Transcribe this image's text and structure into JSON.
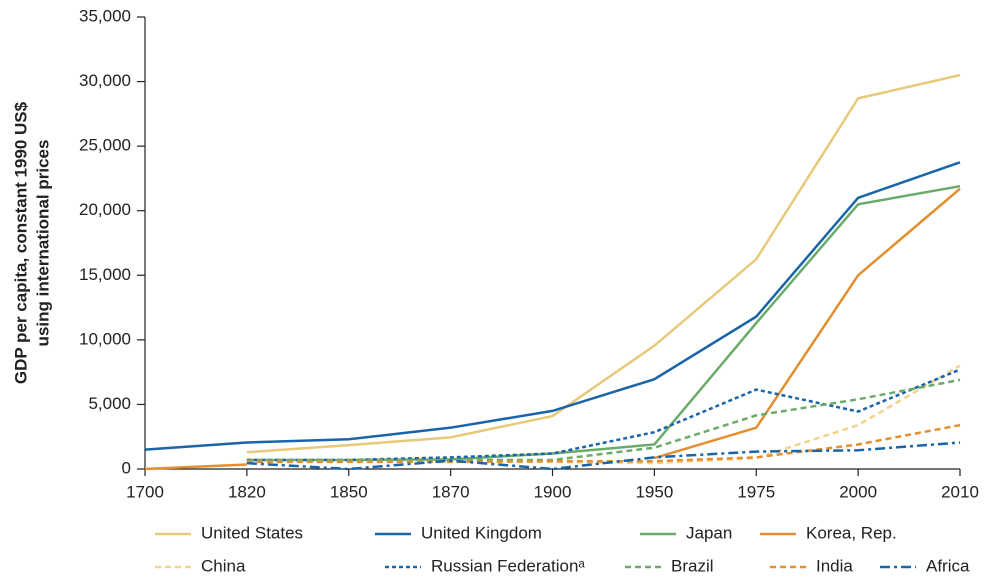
{
  "chart_data": {
    "type": "line",
    "ylabel": [
      "GDP per capita, constant 1990 US$",
      "using international prices"
    ],
    "categories": [
      "1700",
      "1820",
      "1850",
      "1870",
      "1900",
      "1950",
      "1975",
      "2000",
      "2010"
    ],
    "ylim": [
      0,
      35000
    ],
    "yticks": [
      0,
      {
        "value": 5000,
        "label": "5,000"
      },
      {
        "value": 10000,
        "label": "10,000"
      },
      {
        "value": 15000,
        "label": "15,000"
      },
      {
        "value": 20000,
        "label": "20,000"
      },
      {
        "value": 25000,
        "label": "25,000"
      },
      {
        "value": 30000,
        "label": "30,000"
      },
      {
        "value": 35000,
        "label": "35,000"
      }
    ],
    "series": [
      {
        "name": "United States",
        "color": "#e8c97a",
        "dash": "solid",
        "values": [
          null,
          1300,
          1850,
          2450,
          4100,
          9550,
          16250,
          28700,
          30500
        ]
      },
      {
        "name": "United Kingdom",
        "color": "#1a64a8",
        "dash": "solid",
        "values": [
          1500,
          2050,
          2300,
          3200,
          4500,
          6950,
          11800,
          21000,
          23750
        ]
      },
      {
        "name": "Japan",
        "color": "#6aab6a",
        "dash": "solid",
        "values": [
          null,
          700,
          700,
          750,
          1200,
          1900,
          11300,
          20500,
          21900
        ]
      },
      {
        "name": "Korea, Rep.",
        "color": "#e38f2f",
        "dash": "solid",
        "values": [
          0,
          350,
          null,
          null,
          null,
          850,
          3200,
          15000,
          21700
        ]
      },
      {
        "name": "China",
        "color": "#f2d38a",
        "dash": "dashed",
        "values": [
          null,
          600,
          600,
          550,
          550,
          450,
          850,
          3400,
          8000
        ]
      },
      {
        "name": "Russian Federationᵃ",
        "color": "#1a64a8",
        "dash": "dotted",
        "values": [
          null,
          700,
          700,
          900,
          1200,
          2850,
          6150,
          4450,
          7700
        ]
      },
      {
        "name": "Brazil",
        "color": "#6aab6a",
        "dash": "dashed",
        "values": [
          null,
          650,
          700,
          700,
          700,
          1650,
          4150,
          5400,
          6900
        ]
      },
      {
        "name": "India",
        "color": "#e38f2f",
        "dash": "dashed",
        "values": [
          null,
          550,
          550,
          550,
          600,
          600,
          900,
          1900,
          3400
        ]
      },
      {
        "name": "Africa",
        "color": "#1a64a8",
        "dash": "dashdot",
        "values": [
          null,
          450,
          0,
          650,
          0,
          900,
          1350,
          1450,
          2050
        ]
      }
    ]
  }
}
